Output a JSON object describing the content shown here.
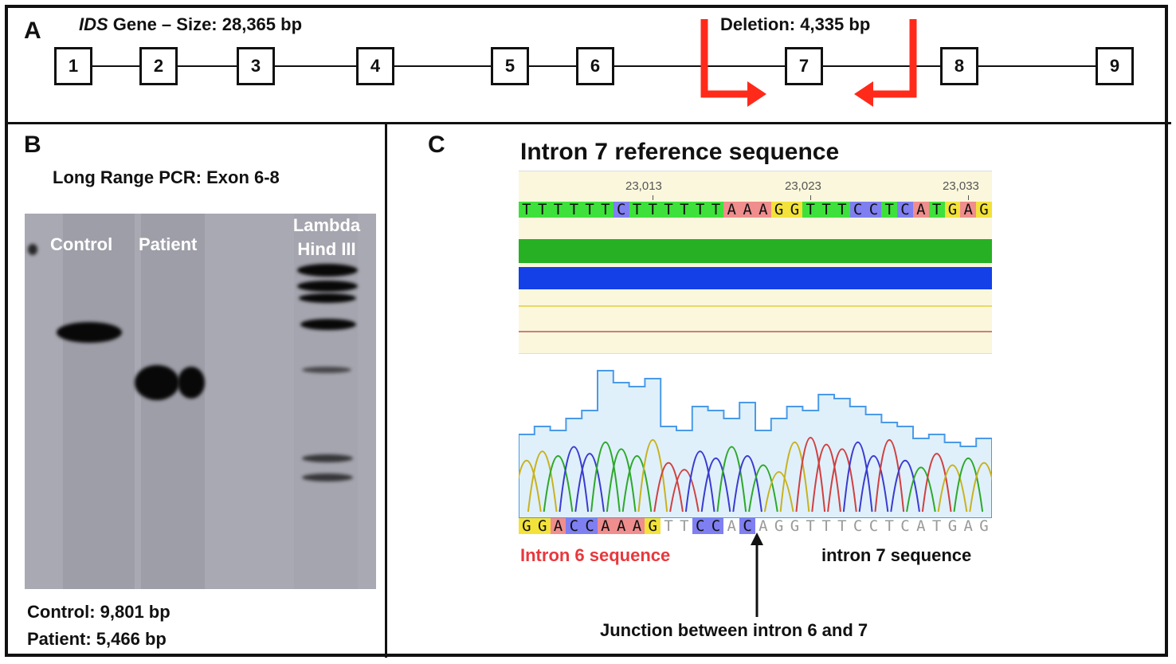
{
  "panel_a": {
    "letter": "A",
    "gene_name": "IDS",
    "gene_rest": " Gene – Size: 28,365 bp",
    "deletion_label": "Deletion: 4,335 bp",
    "exons": [
      "1",
      "2",
      "3",
      "4",
      "5",
      "6",
      "7",
      "8",
      "9"
    ],
    "arrow_color": "#ff2a1a"
  },
  "panel_b": {
    "letter": "B",
    "title": "Long Range PCR: Exon 6-8",
    "lane_control": "Control",
    "lane_patient": "Patient",
    "lane_ladder_line1": "Lambda",
    "lane_ladder_line2": "Hind III",
    "result_control": "Control: 9,801 bp",
    "result_patient": "Patient: 5,466 bp"
  },
  "panel_c": {
    "letter": "C",
    "title": "Intron 7 reference sequence",
    "positions": [
      "23,013",
      "23,023",
      "23,033"
    ],
    "reference_sequence": "TTTTTTCTTTTTTAAAGGTTTCCTCATGAG",
    "reference_highlight": [
      "g",
      "g",
      "g",
      "g",
      "g",
      "g",
      "b",
      "g",
      "g",
      "g",
      "g",
      "g",
      "g",
      "r",
      "r",
      "r",
      "y",
      "y",
      "g",
      "g",
      "g",
      "b",
      "b",
      "g",
      "b",
      "r",
      "g",
      "y",
      "r",
      "y"
    ],
    "trace_sequence": "GGACCAAAGTTCCACAGGTTTCCTCATGAG",
    "trace_highlight": [
      "y",
      "y",
      "r",
      "b",
      "b",
      "r",
      "r",
      "r",
      "y",
      "n",
      "n",
      "b",
      "b",
      "n",
      "b",
      "n",
      "n",
      "n",
      "n",
      "n",
      "n",
      "n",
      "n",
      "n",
      "n",
      "n",
      "n",
      "n",
      "n",
      "n"
    ],
    "intron6_label": "Intron 6 sequence",
    "intron7_label": "intron 7 sequence",
    "junction_label": "Junction between intron 6 and 7",
    "colors": {
      "g": "#3ee13b",
      "b": "#7f7ff2",
      "r": "#f08d8d",
      "y": "#f2e23a",
      "intron6": "#e8383d",
      "quality_green": "#27b024",
      "quality_blue": "#1440e8"
    }
  }
}
